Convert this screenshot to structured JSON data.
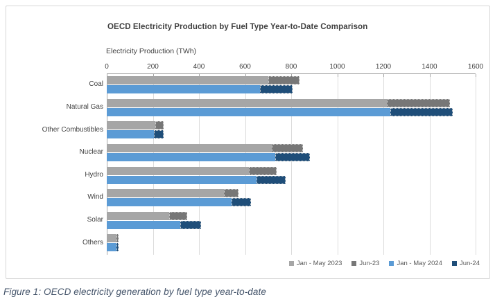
{
  "figure": {
    "caption": "Figure 1: OECD electricity generation by fuel type year-to-date"
  },
  "chart_data": {
    "type": "bar",
    "orientation": "horizontal",
    "stacked": true,
    "title": "OECD Electricity Production by Fuel Type Year-to-Date Comparison",
    "axis_title": "Electricity Production (TWh)",
    "xlabel": "Electricity Production (TWh)",
    "ylabel": "",
    "xlim": [
      0,
      1600
    ],
    "xticks": [
      0,
      200,
      400,
      600,
      800,
      1000,
      1200,
      1400,
      1600
    ],
    "grid": true,
    "legend_position": "bottom-right",
    "categories": [
      "Coal",
      "Natural Gas",
      "Other Combustibles",
      "Nuclear",
      "Hydro",
      "Wind",
      "Solar",
      "Others"
    ],
    "series": [
      {
        "name": "Jan - May 2023",
        "stack": "2023",
        "color": "#a6a6a6",
        "values": [
          700,
          1215,
          210,
          715,
          618,
          509,
          272,
          43
        ]
      },
      {
        "name": "Jun-23",
        "stack": "2023",
        "color": "#777777",
        "values": [
          135,
          275,
          36,
          135,
          120,
          62,
          78,
          7
        ]
      },
      {
        "name": "Jan - May 2024",
        "stack": "2024",
        "color": "#5b9bd5",
        "values": [
          665,
          1230,
          204,
          730,
          649,
          540,
          318,
          43
        ]
      },
      {
        "name": "Jun-24",
        "stack": "2024",
        "color": "#1f4e79",
        "values": [
          140,
          270,
          43,
          150,
          128,
          85,
          91,
          9
        ]
      }
    ],
    "stack_totals_2023": [
      835,
      1490,
      246,
      850,
      738,
      571,
      350,
      50
    ],
    "stack_totals_2024": [
      805,
      1500,
      247,
      880,
      777,
      625,
      409,
      52
    ]
  },
  "colors": {
    "grid": "#dcdcdc",
    "axis": "#a6a6a6",
    "title_text": "#404040",
    "legend_text": "#595959",
    "caption_text": "#44546a",
    "frame_border": "#d6d6d6"
  }
}
